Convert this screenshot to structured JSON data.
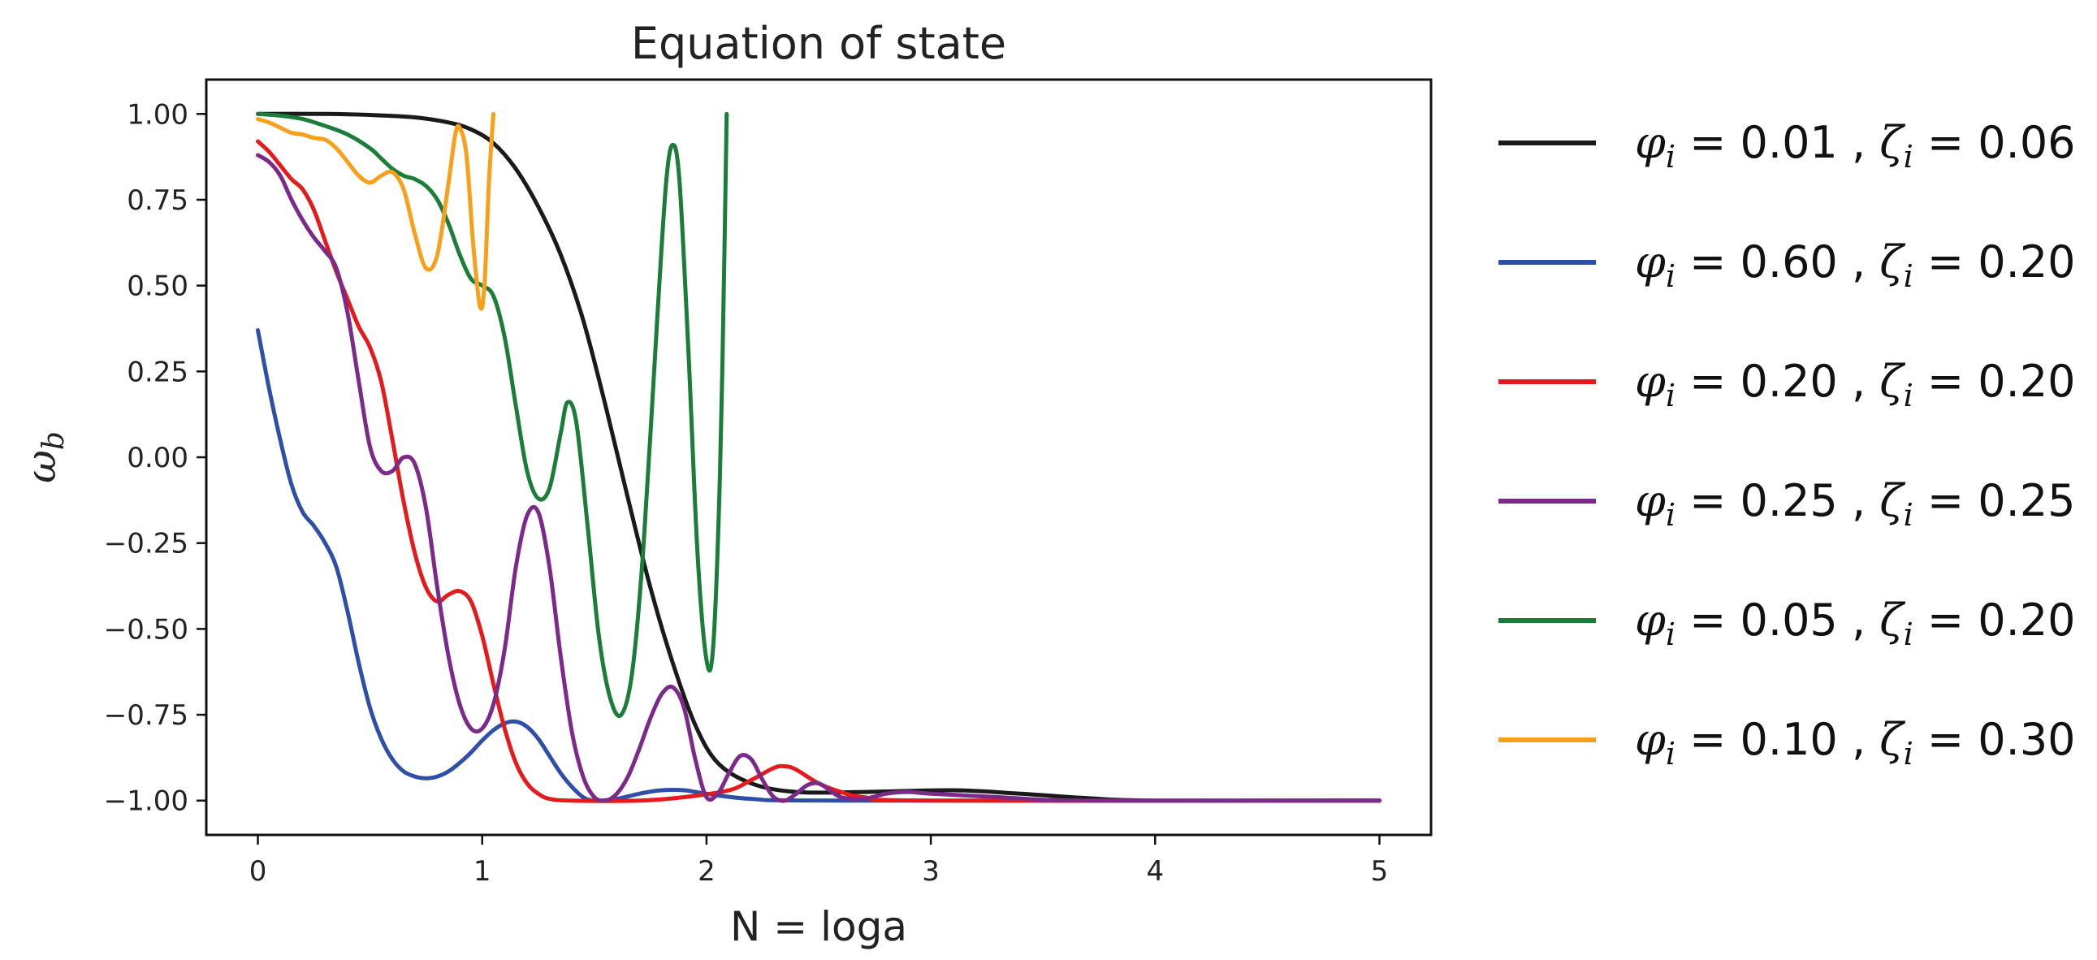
{
  "chart_data": {
    "type": "line",
    "title": "Equation of state",
    "xlabel": "N = loga",
    "ylabel_symbol": "ω",
    "ylabel_sub": "b",
    "xlim": [
      -0.23,
      5.23
    ],
    "ylim": [
      -1.1,
      1.1
    ],
    "xticks": [
      0,
      1,
      2,
      3,
      4,
      5
    ],
    "xtick_labels": [
      "0",
      "1",
      "2",
      "3",
      "4",
      "5"
    ],
    "yticks": [
      1.0,
      0.75,
      0.5,
      0.25,
      0.0,
      -0.25,
      -0.5,
      -0.75,
      -1.0
    ],
    "ytick_labels": [
      "1.00",
      "0.75",
      "0.50",
      "0.25",
      "0.00",
      "−0.25",
      "−0.50",
      "−0.75",
      "−1.00"
    ],
    "grid": false,
    "legend_position": "outside-right",
    "series": [
      {
        "name": "φi = 0.01 , ζi = 0.06",
        "phi": "0.01",
        "zeta": "0.06",
        "color": "#1a1a1a",
        "points": [
          [
            0,
            1.0
          ],
          [
            0.3,
            1.0
          ],
          [
            0.5,
            0.997
          ],
          [
            0.7,
            0.99
          ],
          [
            0.85,
            0.975
          ],
          [
            0.95,
            0.955
          ],
          [
            1.05,
            0.915
          ],
          [
            1.15,
            0.84
          ],
          [
            1.25,
            0.73
          ],
          [
            1.35,
            0.59
          ],
          [
            1.45,
            0.4
          ],
          [
            1.55,
            0.15
          ],
          [
            1.65,
            -0.12
          ],
          [
            1.75,
            -0.38
          ],
          [
            1.85,
            -0.6
          ],
          [
            1.95,
            -0.78
          ],
          [
            2.05,
            -0.89
          ],
          [
            2.2,
            -0.95
          ],
          [
            2.4,
            -0.975
          ],
          [
            2.7,
            -0.975
          ],
          [
            3.1,
            -0.97
          ],
          [
            3.4,
            -0.98
          ],
          [
            3.7,
            -0.993
          ],
          [
            4.0,
            -1.0
          ],
          [
            5.0,
            -1.0
          ]
        ]
      },
      {
        "name": "φi = 0.60 , ζi = 0.20",
        "phi": "0.60",
        "zeta": "0.20",
        "color": "#2e4fa8",
        "points": [
          [
            0,
            0.37
          ],
          [
            0.05,
            0.2
          ],
          [
            0.1,
            0.05
          ],
          [
            0.15,
            -0.08
          ],
          [
            0.2,
            -0.16
          ],
          [
            0.25,
            -0.2
          ],
          [
            0.3,
            -0.25
          ],
          [
            0.35,
            -0.32
          ],
          [
            0.4,
            -0.45
          ],
          [
            0.45,
            -0.6
          ],
          [
            0.5,
            -0.73
          ],
          [
            0.55,
            -0.82
          ],
          [
            0.6,
            -0.88
          ],
          [
            0.65,
            -0.915
          ],
          [
            0.7,
            -0.93
          ],
          [
            0.75,
            -0.935
          ],
          [
            0.8,
            -0.93
          ],
          [
            0.85,
            -0.915
          ],
          [
            0.9,
            -0.89
          ],
          [
            0.95,
            -0.86
          ],
          [
            1.0,
            -0.825
          ],
          [
            1.05,
            -0.795
          ],
          [
            1.1,
            -0.775
          ],
          [
            1.15,
            -0.77
          ],
          [
            1.2,
            -0.785
          ],
          [
            1.25,
            -0.82
          ],
          [
            1.3,
            -0.87
          ],
          [
            1.35,
            -0.92
          ],
          [
            1.4,
            -0.96
          ],
          [
            1.45,
            -0.99
          ],
          [
            1.5,
            -1.0
          ],
          [
            1.6,
            -0.995
          ],
          [
            1.7,
            -0.98
          ],
          [
            1.8,
            -0.97
          ],
          [
            1.9,
            -0.97
          ],
          [
            2.0,
            -0.98
          ],
          [
            2.2,
            -0.995
          ],
          [
            2.6,
            -1.0
          ],
          [
            5.0,
            -1.0
          ]
        ]
      },
      {
        "name": "φi = 0.20 , ζi = 0.20",
        "phi": "0.20",
        "zeta": "0.20",
        "color": "#e41a1c",
        "points": [
          [
            0,
            0.92
          ],
          [
            0.05,
            0.89
          ],
          [
            0.1,
            0.85
          ],
          [
            0.15,
            0.81
          ],
          [
            0.2,
            0.78
          ],
          [
            0.25,
            0.72
          ],
          [
            0.3,
            0.63
          ],
          [
            0.35,
            0.54
          ],
          [
            0.4,
            0.46
          ],
          [
            0.45,
            0.38
          ],
          [
            0.5,
            0.32
          ],
          [
            0.55,
            0.22
          ],
          [
            0.6,
            0.05
          ],
          [
            0.65,
            -0.13
          ],
          [
            0.7,
            -0.28
          ],
          [
            0.75,
            -0.38
          ],
          [
            0.8,
            -0.42
          ],
          [
            0.85,
            -0.4
          ],
          [
            0.9,
            -0.39
          ],
          [
            0.95,
            -0.42
          ],
          [
            1.0,
            -0.52
          ],
          [
            1.05,
            -0.66
          ],
          [
            1.1,
            -0.79
          ],
          [
            1.15,
            -0.89
          ],
          [
            1.2,
            -0.95
          ],
          [
            1.25,
            -0.98
          ],
          [
            1.3,
            -0.995
          ],
          [
            1.4,
            -1.0
          ],
          [
            1.7,
            -1.0
          ],
          [
            1.9,
            -0.99
          ],
          [
            2.1,
            -0.97
          ],
          [
            2.2,
            -0.94
          ],
          [
            2.3,
            -0.905
          ],
          [
            2.35,
            -0.9
          ],
          [
            2.4,
            -0.91
          ],
          [
            2.5,
            -0.95
          ],
          [
            2.6,
            -0.975
          ],
          [
            2.7,
            -0.99
          ],
          [
            3.0,
            -1.0
          ],
          [
            5.0,
            -1.0
          ]
        ]
      },
      {
        "name": "φi = 0.25 , ζi = 0.25",
        "phi": "0.25",
        "zeta": "0.25",
        "color": "#7b2a8a",
        "points": [
          [
            0,
            0.88
          ],
          [
            0.05,
            0.86
          ],
          [
            0.1,
            0.82
          ],
          [
            0.15,
            0.75
          ],
          [
            0.2,
            0.69
          ],
          [
            0.25,
            0.64
          ],
          [
            0.3,
            0.6
          ],
          [
            0.35,
            0.55
          ],
          [
            0.4,
            0.42
          ],
          [
            0.45,
            0.22
          ],
          [
            0.5,
            0.03
          ],
          [
            0.55,
            -0.04
          ],
          [
            0.6,
            -0.04
          ],
          [
            0.65,
            0.0
          ],
          [
            0.7,
            -0.02
          ],
          [
            0.75,
            -0.15
          ],
          [
            0.8,
            -0.38
          ],
          [
            0.85,
            -0.58
          ],
          [
            0.9,
            -0.72
          ],
          [
            0.95,
            -0.79
          ],
          [
            1.0,
            -0.79
          ],
          [
            1.05,
            -0.72
          ],
          [
            1.1,
            -0.56
          ],
          [
            1.15,
            -0.32
          ],
          [
            1.2,
            -0.17
          ],
          [
            1.25,
            -0.16
          ],
          [
            1.3,
            -0.32
          ],
          [
            1.35,
            -0.58
          ],
          [
            1.4,
            -0.8
          ],
          [
            1.45,
            -0.93
          ],
          [
            1.5,
            -0.99
          ],
          [
            1.55,
            -1.0
          ],
          [
            1.6,
            -0.98
          ],
          [
            1.65,
            -0.93
          ],
          [
            1.7,
            -0.85
          ],
          [
            1.75,
            -0.76
          ],
          [
            1.8,
            -0.69
          ],
          [
            1.85,
            -0.67
          ],
          [
            1.9,
            -0.73
          ],
          [
            1.95,
            -0.88
          ],
          [
            2.0,
            -0.99
          ],
          [
            2.05,
            -0.98
          ],
          [
            2.1,
            -0.92
          ],
          [
            2.15,
            -0.87
          ],
          [
            2.2,
            -0.88
          ],
          [
            2.25,
            -0.94
          ],
          [
            2.3,
            -0.99
          ],
          [
            2.35,
            -1.0
          ],
          [
            2.4,
            -0.98
          ],
          [
            2.45,
            -0.955
          ],
          [
            2.5,
            -0.95
          ],
          [
            2.55,
            -0.97
          ],
          [
            2.6,
            -0.99
          ],
          [
            2.7,
            -0.995
          ],
          [
            2.8,
            -0.98
          ],
          [
            2.9,
            -0.975
          ],
          [
            3.0,
            -0.98
          ],
          [
            3.3,
            -0.99
          ],
          [
            3.7,
            -1.0
          ],
          [
            5.0,
            -1.0
          ]
        ]
      },
      {
        "name": "φi = 0.05 , ζi = 0.20",
        "phi": "0.05",
        "zeta": "0.20",
        "color": "#1b7d3a",
        "points": [
          [
            0,
            1.0
          ],
          [
            0.1,
            0.995
          ],
          [
            0.2,
            0.985
          ],
          [
            0.3,
            0.965
          ],
          [
            0.4,
            0.94
          ],
          [
            0.5,
            0.9
          ],
          [
            0.55,
            0.87
          ],
          [
            0.6,
            0.84
          ],
          [
            0.65,
            0.82
          ],
          [
            0.7,
            0.81
          ],
          [
            0.75,
            0.79
          ],
          [
            0.8,
            0.75
          ],
          [
            0.85,
            0.68
          ],
          [
            0.9,
            0.59
          ],
          [
            0.95,
            0.52
          ],
          [
            1.0,
            0.5
          ],
          [
            1.05,
            0.47
          ],
          [
            1.1,
            0.35
          ],
          [
            1.15,
            0.15
          ],
          [
            1.2,
            -0.04
          ],
          [
            1.25,
            -0.12
          ],
          [
            1.3,
            -0.09
          ],
          [
            1.35,
            0.07
          ],
          [
            1.38,
            0.16
          ],
          [
            1.42,
            0.1
          ],
          [
            1.47,
            -0.2
          ],
          [
            1.52,
            -0.52
          ],
          [
            1.57,
            -0.7
          ],
          [
            1.62,
            -0.75
          ],
          [
            1.67,
            -0.62
          ],
          [
            1.72,
            -0.25
          ],
          [
            1.78,
            0.4
          ],
          [
            1.82,
            0.8
          ],
          [
            1.85,
            0.91
          ],
          [
            1.88,
            0.8
          ],
          [
            1.92,
            0.3
          ],
          [
            1.96,
            -0.28
          ],
          [
            2.0,
            -0.59
          ],
          [
            2.03,
            -0.55
          ],
          [
            2.06,
            -0.05
          ],
          [
            2.08,
            0.6
          ],
          [
            2.09,
            1.0
          ]
        ]
      },
      {
        "name": "φi = 0.10 , ζi = 0.30",
        "phi": "0.10",
        "zeta": "0.30",
        "color": "#f9a01b",
        "points": [
          [
            0,
            0.985
          ],
          [
            0.05,
            0.975
          ],
          [
            0.1,
            0.96
          ],
          [
            0.15,
            0.945
          ],
          [
            0.2,
            0.94
          ],
          [
            0.25,
            0.93
          ],
          [
            0.3,
            0.925
          ],
          [
            0.35,
            0.9
          ],
          [
            0.4,
            0.86
          ],
          [
            0.45,
            0.82
          ],
          [
            0.5,
            0.8
          ],
          [
            0.55,
            0.82
          ],
          [
            0.6,
            0.83
          ],
          [
            0.65,
            0.78
          ],
          [
            0.7,
            0.65
          ],
          [
            0.75,
            0.55
          ],
          [
            0.8,
            0.59
          ],
          [
            0.85,
            0.8
          ],
          [
            0.88,
            0.94
          ],
          [
            0.9,
            0.96
          ],
          [
            0.93,
            0.88
          ],
          [
            0.96,
            0.62
          ],
          [
            0.99,
            0.44
          ],
          [
            1.01,
            0.5
          ],
          [
            1.03,
            0.8
          ],
          [
            1.05,
            1.0
          ]
        ]
      }
    ]
  }
}
